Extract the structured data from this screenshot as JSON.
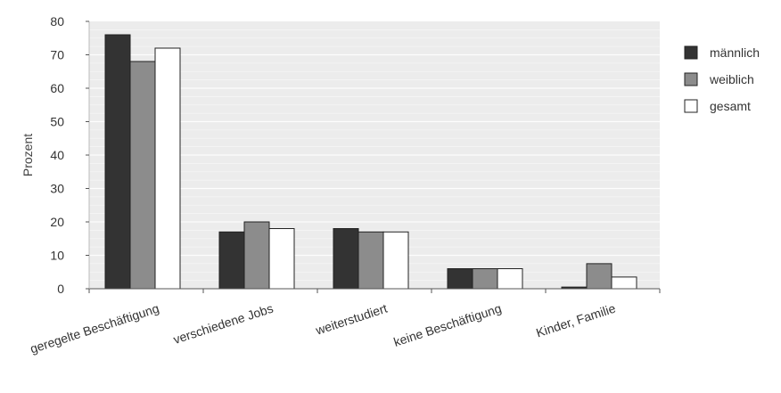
{
  "chart_data": {
    "type": "bar",
    "title": "",
    "xlabel": "",
    "ylabel": "Prozent",
    "ylim": [
      0,
      80
    ],
    "yticks": [
      0,
      10,
      20,
      30,
      40,
      50,
      60,
      70,
      80
    ],
    "grid": true,
    "legend_position": "right",
    "categories": [
      "geregelte Beschäftigung",
      "verschiedene Jobs",
      "weiterstudiert",
      "keine Beschäftigung",
      "Kinder, Familie"
    ],
    "series": [
      {
        "name": "männlich",
        "color": "#333333",
        "values": [
          76,
          17,
          18,
          6,
          0.5
        ]
      },
      {
        "name": "weiblich",
        "color": "#8c8c8c",
        "values": [
          68,
          20,
          17,
          6,
          7.5
        ]
      },
      {
        "name": "gesamt",
        "color": "#ffffff",
        "values": [
          72,
          18,
          17,
          6,
          3.5
        ]
      }
    ],
    "plot_background": "#ececec",
    "gridline_color": "#ffffff"
  }
}
